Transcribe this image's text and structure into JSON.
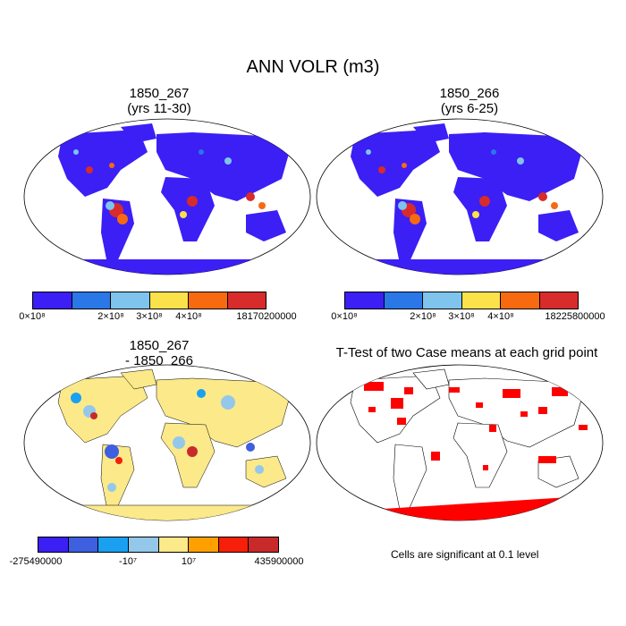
{
  "title": "ANN VOLR (m3)",
  "panels": [
    {
      "title": "1850_267\n(yrs 11-30)",
      "colorbar": {
        "colors": [
          "#3b1ff5",
          "#2a77e8",
          "#7ec4ec",
          "#fbe14a",
          "#f76a10",
          "#d82b2b"
        ],
        "labels": [
          "0×10⁸",
          "2×10⁸",
          "3×10⁸",
          "4×10⁸",
          "18170200000"
        ]
      }
    },
    {
      "title": "1850_266\n(yrs 6-25)",
      "colorbar": {
        "colors": [
          "#3b1ff5",
          "#2a77e8",
          "#7ec4ec",
          "#fbe14a",
          "#f76a10",
          "#d82b2b"
        ],
        "labels": [
          "0×10⁸",
          "2×10⁸",
          "3×10⁸",
          "4×10⁸",
          "18225800000"
        ]
      }
    },
    {
      "title": "1850_267\n- 1850_266",
      "colorbar": {
        "colors": [
          "#3b1ff5",
          "#3d5fe0",
          "#1aa0f0",
          "#93c8ea",
          "#fbe98a",
          "#ffa000",
          "#f51f0a",
          "#c82a2a"
        ],
        "labels": [
          "-275490000",
          "-10⁷",
          "10⁷",
          "435900000"
        ]
      }
    },
    {
      "title": "T-Test of two Case means at each grid point",
      "note": "Cells are significant at 0.1 level"
    }
  ],
  "map_colors": {
    "land_main": "#3b1ff5",
    "diff_main": "#fbe98a",
    "signif": "#ff0000"
  }
}
